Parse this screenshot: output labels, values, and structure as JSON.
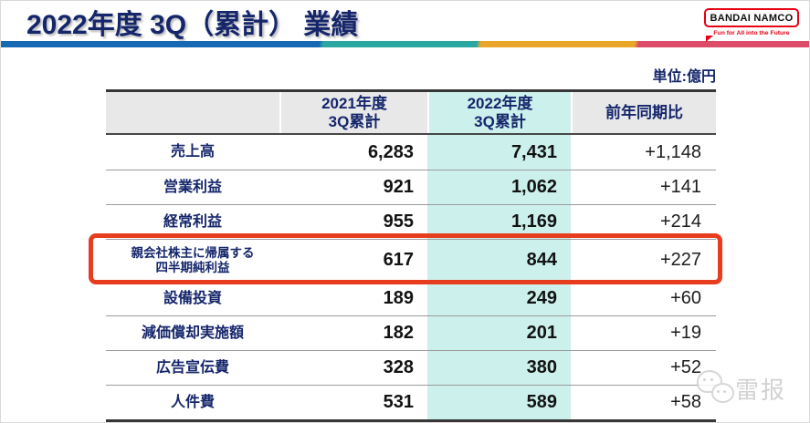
{
  "page": {
    "title": "2022年度 3Q（累計） 業績",
    "unit_label": "単位:億円"
  },
  "logo": {
    "name": "BANDAI NAMCO",
    "tagline": "Fun for All into the Future",
    "brand_color": "#e60012"
  },
  "theme": {
    "navy": "#15266b",
    "accent_bar_colors": [
      "#1768b2",
      "#2aa7a1",
      "#e9a62b",
      "#dc4b67"
    ],
    "header_bg": "#e8e8e8",
    "highlight_column_bg": "#ccf0eb",
    "highlight_box_color": "#e73c1e"
  },
  "table": {
    "columns": [
      "",
      "2021年度\n3Q累計",
      "2022年度\n3Q累計",
      "前年同期比"
    ],
    "rows": [
      {
        "label": "売上高",
        "fy2021": "6,283",
        "fy2022": "7,431",
        "yoy": "+1,148",
        "highlighted": false
      },
      {
        "label": "営業利益",
        "fy2021": "921",
        "fy2022": "1,062",
        "yoy": "+141",
        "highlighted": false
      },
      {
        "label": "経常利益",
        "fy2021": "955",
        "fy2022": "1,169",
        "yoy": "+214",
        "highlighted": false
      },
      {
        "label": "親会社株主に帰属する\n四半期純利益",
        "fy2021": "617",
        "fy2022": "844",
        "yoy": "+227",
        "highlighted": true
      },
      {
        "label": "設備投資",
        "fy2021": "189",
        "fy2022": "249",
        "yoy": "+60",
        "highlighted": false
      },
      {
        "label": "減価償却実施額",
        "fy2021": "182",
        "fy2022": "201",
        "yoy": "+19",
        "highlighted": false
      },
      {
        "label": "広告宣伝費",
        "fy2021": "328",
        "fy2022": "380",
        "yoy": "+52",
        "highlighted": false
      },
      {
        "label": "人件費",
        "fy2021": "531",
        "fy2022": "589",
        "yoy": "+58",
        "highlighted": false
      }
    ]
  },
  "watermark": {
    "text": "雷报"
  }
}
